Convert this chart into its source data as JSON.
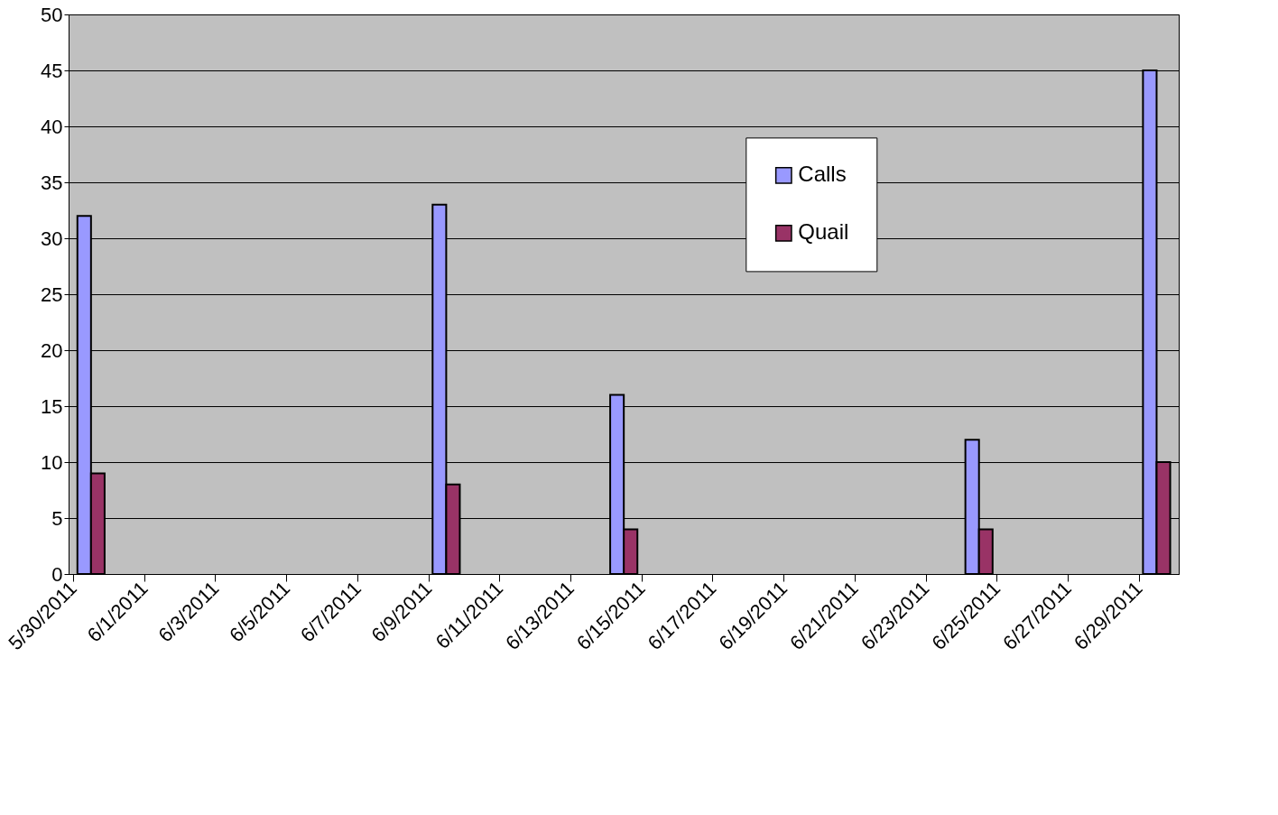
{
  "chart_data": {
    "type": "bar",
    "x": [
      "2011-05-30",
      "2011-06-09",
      "2011-06-14",
      "2011-06-24",
      "2011-06-29"
    ],
    "series": [
      {
        "name": "Calls",
        "color": "#9999ff",
        "values": [
          32,
          33,
          16,
          12,
          45
        ]
      },
      {
        "name": "Quail",
        "color": "#993366",
        "values": [
          9,
          8,
          4,
          4,
          10
        ]
      }
    ],
    "xlim": [
      "2011-05-30",
      "2011-06-30"
    ],
    "xticks": [
      {
        "value": "2011-05-30",
        "label": "5/30/2011"
      },
      {
        "value": "2011-06-01",
        "label": "6/1/2011"
      },
      {
        "value": "2011-06-03",
        "label": "6/3/2011"
      },
      {
        "value": "2011-06-05",
        "label": "6/5/2011"
      },
      {
        "value": "2011-06-07",
        "label": "6/7/2011"
      },
      {
        "value": "2011-06-09",
        "label": "6/9/2011"
      },
      {
        "value": "2011-06-11",
        "label": "6/11/2011"
      },
      {
        "value": "2011-06-13",
        "label": "6/13/2011"
      },
      {
        "value": "2011-06-15",
        "label": "6/15/2011"
      },
      {
        "value": "2011-06-17",
        "label": "6/17/2011"
      },
      {
        "value": "2011-06-19",
        "label": "6/19/2011"
      },
      {
        "value": "2011-06-21",
        "label": "6/21/2011"
      },
      {
        "value": "2011-06-23",
        "label": "6/23/2011"
      },
      {
        "value": "2011-06-25",
        "label": "6/25/2011"
      },
      {
        "value": "2011-06-27",
        "label": "6/27/2011"
      },
      {
        "value": "2011-06-29",
        "label": "6/29/2011"
      }
    ],
    "ylim": [
      0,
      50
    ],
    "yticks": [
      0,
      5,
      10,
      15,
      20,
      25,
      30,
      35,
      40,
      45,
      50
    ],
    "grid": "y",
    "legend": "top right"
  }
}
